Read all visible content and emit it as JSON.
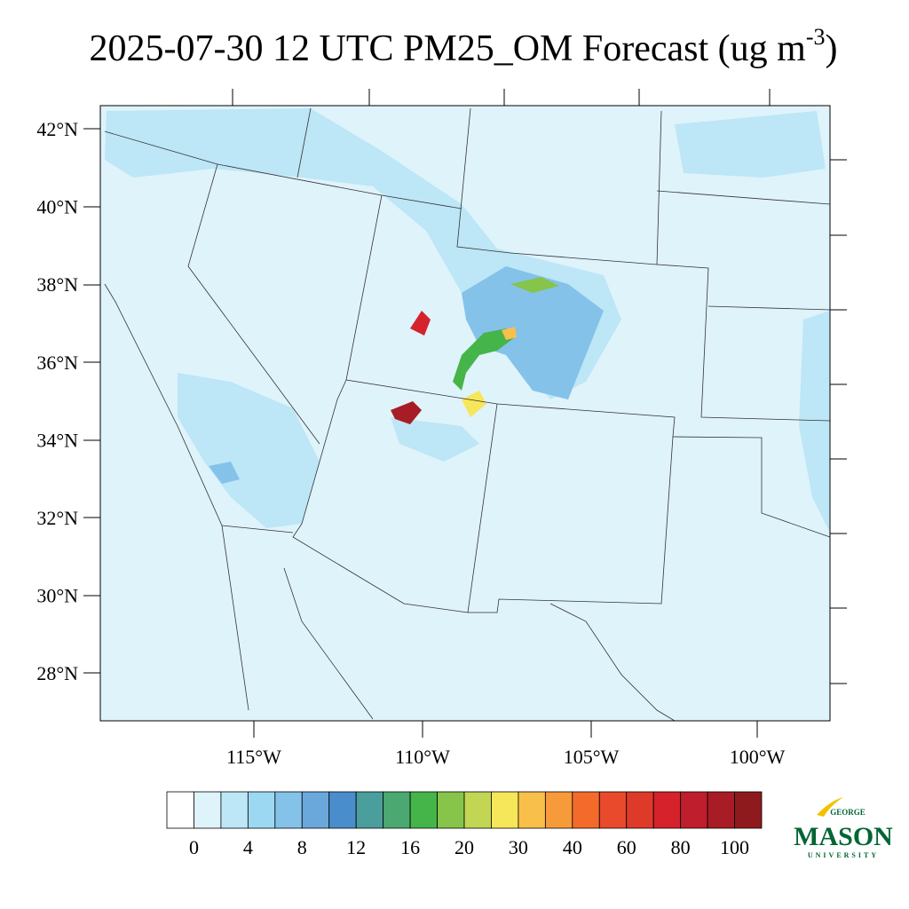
{
  "title": {
    "main": "2025-07-30 12 UTC PM25_OM Forecast (ug m",
    "sup": "-3",
    "end": ")"
  },
  "lat_labels": [
    "42°N",
    "40°N",
    "38°N",
    "36°N",
    "34°N",
    "32°N",
    "30°N",
    "28°N"
  ],
  "lon_labels": [
    "115°W",
    "110°W",
    "105°W",
    "100°W"
  ],
  "colorbar": {
    "colors": [
      "#ffffff",
      "#dff3fb",
      "#bde6f6",
      "#9dd8f3",
      "#84c2ea",
      "#6aa8dc",
      "#4a8dcc",
      "#4a9e9c",
      "#4aa870",
      "#45b449",
      "#86c44a",
      "#c2d654",
      "#f6e659",
      "#f8c04a",
      "#f79a3a",
      "#f46a2b",
      "#e84a2b",
      "#de3a2a",
      "#d6222b",
      "#bf1e2d",
      "#a81c25",
      "#8e1a1e"
    ],
    "labels": [
      0,
      4,
      8,
      12,
      16,
      20,
      30,
      40,
      60,
      80,
      100
    ]
  },
  "logo": {
    "top": "GEORGE",
    "main": "MASON",
    "bottom": "UNIVERSITY"
  }
}
